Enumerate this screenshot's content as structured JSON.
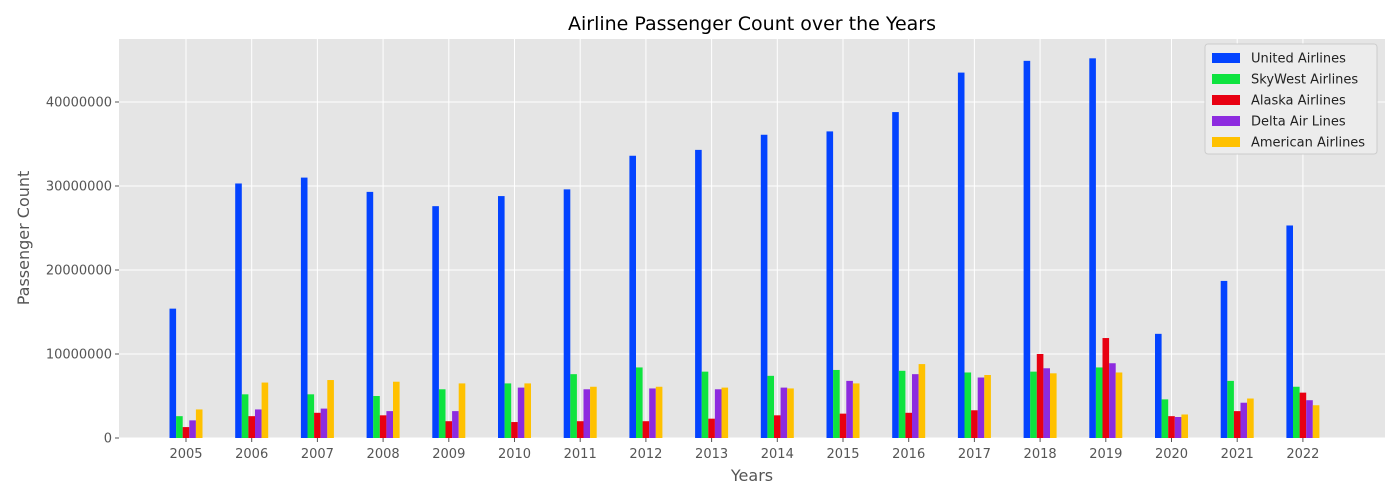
{
  "chart_data": {
    "type": "bar",
    "title": "Airline Passenger Count over the Years",
    "xlabel": "Years",
    "ylabel": "Passenger Count",
    "ylim": [
      0,
      47500000
    ],
    "yticks": [
      0,
      10000000,
      20000000,
      30000000,
      40000000
    ],
    "ytick_labels": [
      "0",
      "10000000",
      "20000000",
      "30000000",
      "40000000"
    ],
    "grid": true,
    "legend_position": "top-right",
    "categories": [
      "2005",
      "2006",
      "2007",
      "2008",
      "2009",
      "2010",
      "2011",
      "2012",
      "2013",
      "2014",
      "2015",
      "2016",
      "2017",
      "2018",
      "2019",
      "2020",
      "2021",
      "2022"
    ],
    "series": [
      {
        "name": "United Airlines",
        "color": "#0343ff",
        "values": [
          15400000,
          30300000,
          31000000,
          29300000,
          27600000,
          28800000,
          29600000,
          33600000,
          34300000,
          36100000,
          36500000,
          38800000,
          43500000,
          44900000,
          45200000,
          12400000,
          18700000,
          25300000
        ]
      },
      {
        "name": "SkyWest Airlines",
        "color": "#0ee33f",
        "values": [
          2600000,
          5200000,
          5200000,
          5000000,
          5800000,
          6500000,
          7600000,
          8400000,
          7900000,
          7400000,
          8100000,
          8000000,
          7800000,
          7900000,
          8400000,
          4600000,
          6800000,
          6100000
        ]
      },
      {
        "name": "Alaska Airlines",
        "color": "#e80011",
        "values": [
          1300000,
          2600000,
          3000000,
          2700000,
          2000000,
          1900000,
          2000000,
          2000000,
          2300000,
          2700000,
          2900000,
          3000000,
          3300000,
          10000000,
          11900000,
          2600000,
          3200000,
          5400000
        ]
      },
      {
        "name": "Delta Air Lines",
        "color": "#8d2bdf",
        "values": [
          2100000,
          3400000,
          3500000,
          3200000,
          3200000,
          6000000,
          5800000,
          5900000,
          5800000,
          6000000,
          6800000,
          7600000,
          7200000,
          8300000,
          8900000,
          2500000,
          4200000,
          4500000
        ]
      },
      {
        "name": "American Airlines",
        "color": "#ffc100",
        "values": [
          3400000,
          6600000,
          6900000,
          6700000,
          6500000,
          6500000,
          6100000,
          6100000,
          6000000,
          5900000,
          6500000,
          8800000,
          7500000,
          7700000,
          7800000,
          2800000,
          4700000,
          3900000
        ]
      }
    ]
  }
}
